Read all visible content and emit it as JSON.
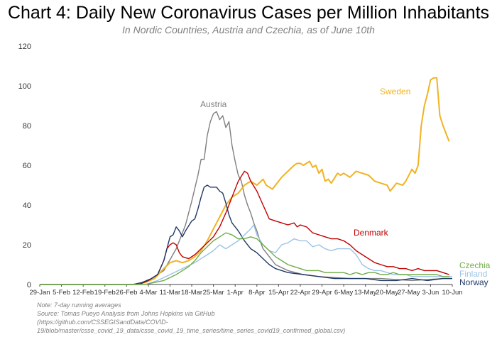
{
  "chart_data": {
    "type": "line",
    "title": "Chart 4: Daily New Coronavirus Cases per Million Inhabitants",
    "subtitle": "In Nordic Countries, Austria and Czechia, as of June 10th",
    "xlabel": "",
    "ylabel": "",
    "ylim": [
      0,
      120
    ],
    "yticks": [
      0,
      20,
      40,
      60,
      80,
      100,
      120
    ],
    "xlim": [
      0,
      133
    ],
    "xticks": [
      {
        "day": 0,
        "label": "29-Jan"
      },
      {
        "day": 7,
        "label": "5-Feb"
      },
      {
        "day": 14,
        "label": "12-Feb"
      },
      {
        "day": 21,
        "label": "19-Feb"
      },
      {
        "day": 28,
        "label": "26-Feb"
      },
      {
        "day": 35,
        "label": "4-Mar"
      },
      {
        "day": 42,
        "label": "11-Mar"
      },
      {
        "day": 49,
        "label": "18-Mar"
      },
      {
        "day": 56,
        "label": "25-Mar"
      },
      {
        "day": 63,
        "label": "1-Apr"
      },
      {
        "day": 70,
        "label": "8-Apr"
      },
      {
        "day": 77,
        "label": "15-Apr"
      },
      {
        "day": 84,
        "label": "22-Apr"
      },
      {
        "day": 91,
        "label": "29-Apr"
      },
      {
        "day": 98,
        "label": "6-May"
      },
      {
        "day": 105,
        "label": "13-May"
      },
      {
        "day": 112,
        "label": "20-May"
      },
      {
        "day": 119,
        "label": "27-May"
      },
      {
        "day": 126,
        "label": "3-Jun"
      },
      {
        "day": 133,
        "label": "10-Jun"
      }
    ],
    "series": [
      {
        "name": "Austria",
        "color": "#7f7f7f",
        "points": [
          [
            0,
            0
          ],
          [
            30,
            0
          ],
          [
            33,
            1
          ],
          [
            36,
            3
          ],
          [
            40,
            7
          ],
          [
            44,
            18
          ],
          [
            47,
            30
          ],
          [
            49,
            42
          ],
          [
            51,
            55
          ],
          [
            52,
            63
          ],
          [
            53,
            63
          ],
          [
            54,
            75
          ],
          [
            55,
            82
          ],
          [
            56,
            86
          ],
          [
            57,
            87
          ],
          [
            58,
            83
          ],
          [
            59,
            85
          ],
          [
            60,
            79
          ],
          [
            61,
            82
          ],
          [
            62,
            70
          ],
          [
            63,
            62
          ],
          [
            64,
            55
          ],
          [
            65,
            52
          ],
          [
            66,
            45
          ],
          [
            67,
            40
          ],
          [
            68,
            36
          ],
          [
            69,
            31
          ],
          [
            70,
            27
          ],
          [
            71,
            22
          ],
          [
            72,
            18
          ],
          [
            74,
            14
          ],
          [
            76,
            10
          ],
          [
            80,
            7
          ],
          [
            85,
            5
          ],
          [
            90,
            4
          ],
          [
            100,
            3
          ],
          [
            110,
            3
          ],
          [
            120,
            2
          ],
          [
            130,
            3
          ],
          [
            133,
            3
          ]
        ]
      },
      {
        "name": "Sweden",
        "color": "#f0b323",
        "points": [
          [
            0,
            0
          ],
          [
            30,
            0
          ],
          [
            34,
            1
          ],
          [
            37,
            3
          ],
          [
            40,
            8
          ],
          [
            42,
            11
          ],
          [
            44,
            12
          ],
          [
            46,
            11
          ],
          [
            48,
            12
          ],
          [
            50,
            14
          ],
          [
            52,
            17
          ],
          [
            54,
            22
          ],
          [
            56,
            28
          ],
          [
            58,
            34
          ],
          [
            60,
            40
          ],
          [
            62,
            44
          ],
          [
            64,
            46
          ],
          [
            66,
            50
          ],
          [
            68,
            52
          ],
          [
            70,
            50
          ],
          [
            72,
            53
          ],
          [
            73,
            50
          ],
          [
            75,
            48
          ],
          [
            77,
            52
          ],
          [
            78,
            54
          ],
          [
            80,
            57
          ],
          [
            82,
            60
          ],
          [
            83,
            61
          ],
          [
            84,
            61
          ],
          [
            85,
            60
          ],
          [
            87,
            62
          ],
          [
            88,
            59
          ],
          [
            89,
            60
          ],
          [
            90,
            56
          ],
          [
            91,
            58
          ],
          [
            92,
            52
          ],
          [
            93,
            53
          ],
          [
            94,
            51
          ],
          [
            96,
            56
          ],
          [
            97,
            55
          ],
          [
            98,
            56
          ],
          [
            100,
            54
          ],
          [
            102,
            57
          ],
          [
            104,
            56
          ],
          [
            106,
            55
          ],
          [
            108,
            52
          ],
          [
            110,
            51
          ],
          [
            112,
            50
          ],
          [
            113,
            47
          ],
          [
            115,
            51
          ],
          [
            117,
            50
          ],
          [
            118,
            52
          ],
          [
            120,
            58
          ],
          [
            121,
            56
          ],
          [
            122,
            60
          ],
          [
            123,
            80
          ],
          [
            124,
            90
          ],
          [
            125,
            96
          ],
          [
            126,
            103
          ],
          [
            127,
            104
          ],
          [
            128,
            104
          ],
          [
            129,
            85
          ],
          [
            130,
            80
          ],
          [
            132,
            72
          ]
        ]
      },
      {
        "name": "Denmark",
        "color": "#c00000",
        "points": [
          [
            0,
            0
          ],
          [
            32,
            0
          ],
          [
            35,
            2
          ],
          [
            38,
            5
          ],
          [
            40,
            12
          ],
          [
            41,
            18
          ],
          [
            42,
            20
          ],
          [
            43,
            21
          ],
          [
            44,
            20
          ],
          [
            45,
            16
          ],
          [
            46,
            14
          ],
          [
            48,
            13
          ],
          [
            50,
            15
          ],
          [
            52,
            18
          ],
          [
            54,
            21
          ],
          [
            56,
            24
          ],
          [
            58,
            29
          ],
          [
            60,
            36
          ],
          [
            62,
            44
          ],
          [
            64,
            52
          ],
          [
            66,
            57
          ],
          [
            67,
            56
          ],
          [
            68,
            52
          ],
          [
            70,
            47
          ],
          [
            72,
            40
          ],
          [
            74,
            33
          ],
          [
            76,
            32
          ],
          [
            78,
            31
          ],
          [
            80,
            30
          ],
          [
            82,
            31
          ],
          [
            83,
            29
          ],
          [
            84,
            30
          ],
          [
            86,
            29
          ],
          [
            88,
            26
          ],
          [
            90,
            25
          ],
          [
            92,
            24
          ],
          [
            94,
            23
          ],
          [
            96,
            23
          ],
          [
            98,
            22
          ],
          [
            100,
            20
          ],
          [
            102,
            17
          ],
          [
            104,
            15
          ],
          [
            106,
            13
          ],
          [
            108,
            11
          ],
          [
            110,
            10
          ],
          [
            112,
            9
          ],
          [
            114,
            9
          ],
          [
            116,
            8
          ],
          [
            118,
            8
          ],
          [
            120,
            7
          ],
          [
            122,
            8
          ],
          [
            124,
            7
          ],
          [
            126,
            7
          ],
          [
            128,
            7
          ],
          [
            130,
            6
          ],
          [
            132,
            5
          ]
        ]
      },
      {
        "name": "Norway",
        "color": "#1f3864",
        "points": [
          [
            0,
            0
          ],
          [
            30,
            0
          ],
          [
            33,
            1
          ],
          [
            36,
            3
          ],
          [
            38,
            5
          ],
          [
            40,
            12
          ],
          [
            41,
            18
          ],
          [
            42,
            24
          ],
          [
            43,
            25
          ],
          [
            44,
            29
          ],
          [
            45,
            27
          ],
          [
            46,
            24
          ],
          [
            47,
            27
          ],
          [
            49,
            32
          ],
          [
            50,
            33
          ],
          [
            51,
            38
          ],
          [
            52,
            44
          ],
          [
            53,
            49
          ],
          [
            54,
            50
          ],
          [
            55,
            49
          ],
          [
            56,
            49
          ],
          [
            57,
            49
          ],
          [
            58,
            47
          ],
          [
            59,
            46
          ],
          [
            60,
            41
          ],
          [
            61,
            35
          ],
          [
            62,
            31
          ],
          [
            64,
            27
          ],
          [
            66,
            22
          ],
          [
            68,
            18
          ],
          [
            70,
            16
          ],
          [
            72,
            13
          ],
          [
            74,
            10
          ],
          [
            76,
            8
          ],
          [
            80,
            6
          ],
          [
            85,
            5
          ],
          [
            90,
            4
          ],
          [
            95,
            3
          ],
          [
            100,
            3
          ],
          [
            105,
            3
          ],
          [
            110,
            2
          ],
          [
            115,
            2
          ],
          [
            120,
            3
          ],
          [
            125,
            2
          ],
          [
            130,
            3
          ],
          [
            133,
            3
          ]
        ]
      },
      {
        "name": "Finland",
        "color": "#9dc3e6",
        "points": [
          [
            0,
            0
          ],
          [
            34,
            0
          ],
          [
            38,
            2
          ],
          [
            42,
            5
          ],
          [
            46,
            8
          ],
          [
            50,
            11
          ],
          [
            54,
            15
          ],
          [
            56,
            17
          ],
          [
            58,
            20
          ],
          [
            60,
            18
          ],
          [
            62,
            20
          ],
          [
            64,
            22
          ],
          [
            66,
            25
          ],
          [
            68,
            28
          ],
          [
            69,
            30
          ],
          [
            70,
            25
          ],
          [
            72,
            20
          ],
          [
            74,
            17
          ],
          [
            76,
            16
          ],
          [
            78,
            20
          ],
          [
            80,
            21
          ],
          [
            82,
            23
          ],
          [
            84,
            22
          ],
          [
            86,
            22
          ],
          [
            88,
            19
          ],
          [
            90,
            20
          ],
          [
            92,
            18
          ],
          [
            94,
            17
          ],
          [
            96,
            18
          ],
          [
            98,
            18
          ],
          [
            100,
            18
          ],
          [
            102,
            15
          ],
          [
            104,
            10
          ],
          [
            106,
            8
          ],
          [
            108,
            7
          ],
          [
            110,
            7
          ],
          [
            112,
            6
          ],
          [
            114,
            5
          ],
          [
            116,
            5
          ],
          [
            118,
            5
          ],
          [
            120,
            4
          ],
          [
            122,
            4
          ],
          [
            124,
            4
          ],
          [
            126,
            4
          ],
          [
            128,
            4
          ],
          [
            130,
            4
          ],
          [
            133,
            4
          ]
        ]
      },
      {
        "name": "Czechia",
        "color": "#70ad47",
        "points": [
          [
            0,
            0
          ],
          [
            34,
            0
          ],
          [
            37,
            1
          ],
          [
            40,
            2
          ],
          [
            44,
            5
          ],
          [
            48,
            9
          ],
          [
            50,
            12
          ],
          [
            52,
            16
          ],
          [
            54,
            19
          ],
          [
            56,
            22
          ],
          [
            58,
            24
          ],
          [
            60,
            26
          ],
          [
            62,
            25
          ],
          [
            64,
            23
          ],
          [
            66,
            23
          ],
          [
            68,
            24
          ],
          [
            70,
            23
          ],
          [
            72,
            20
          ],
          [
            74,
            17
          ],
          [
            76,
            14
          ],
          [
            78,
            12
          ],
          [
            80,
            10
          ],
          [
            82,
            9
          ],
          [
            84,
            8
          ],
          [
            86,
            7
          ],
          [
            88,
            7
          ],
          [
            90,
            7
          ],
          [
            92,
            6
          ],
          [
            94,
            6
          ],
          [
            96,
            6
          ],
          [
            98,
            6
          ],
          [
            100,
            5
          ],
          [
            102,
            6
          ],
          [
            104,
            5
          ],
          [
            106,
            6
          ],
          [
            108,
            6
          ],
          [
            110,
            5
          ],
          [
            112,
            5
          ],
          [
            114,
            6
          ],
          [
            116,
            5
          ],
          [
            118,
            5
          ],
          [
            120,
            5
          ],
          [
            122,
            5
          ],
          [
            124,
            5
          ],
          [
            126,
            5
          ],
          [
            128,
            5
          ],
          [
            130,
            4
          ],
          [
            132,
            4
          ]
        ]
      }
    ]
  },
  "labels": {
    "austria": "Austria",
    "sweden": "Sweden",
    "denmark": "Denmark",
    "czechia": "Czechia",
    "finland": "Finland",
    "norway": "Norway"
  },
  "note": {
    "line1": "Note: 7-day running averages",
    "line2": "Source: Tomas Pueyo Analysis from Johns Hopkins via GitHub (https://github.com/CSSEGISandData/COVID-",
    "line3": "19/blob/master/csse_covid_19_data/csse_covid_19_time_series/time_series_covid19_confirmed_global.csv)"
  }
}
